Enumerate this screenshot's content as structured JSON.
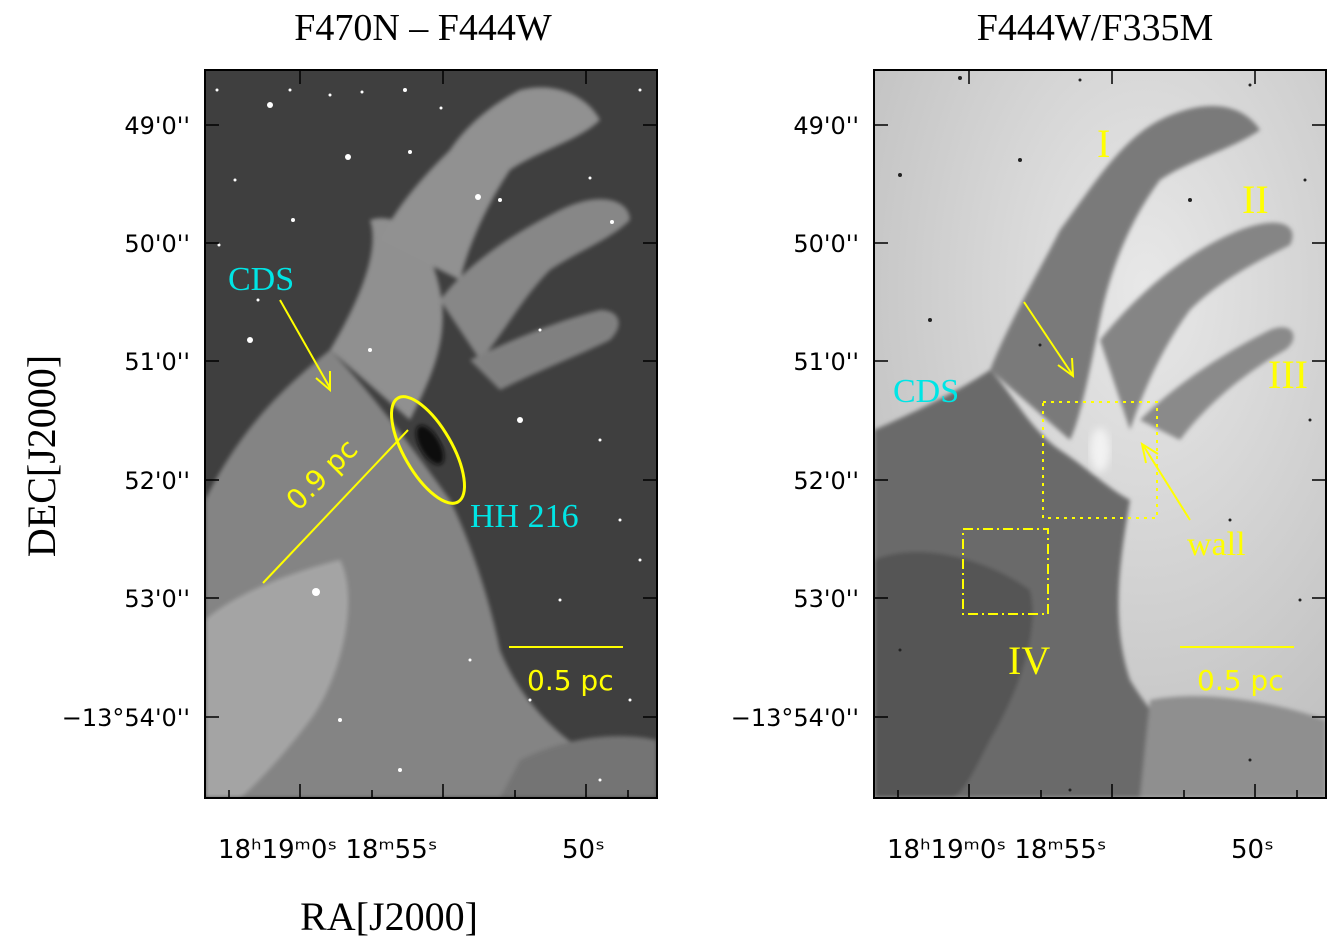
{
  "figure": {
    "ylabel": "DEC[J2000]",
    "xlabel": "RA[J2000]",
    "colors": {
      "annotation_yellow": "#ffff00",
      "annotation_cyan": "#00e5e5",
      "frame": "#000000"
    }
  },
  "panels": [
    {
      "id": "left",
      "title": "F470N – F444W",
      "y_ticks": [
        "49'0''",
        "50'0''",
        "51'0''",
        "52'0''",
        "53'0''",
        "−13°54'0''"
      ],
      "x_ticks": [
        "18ʰ19ᵐ0ˢ 18ᵐ55ˢ",
        "50ˢ"
      ],
      "labels": {
        "cds": "CDS",
        "hh216": "HH 216",
        "length": "0.9 pc",
        "scalebar": "0.5 pc"
      }
    },
    {
      "id": "right",
      "title": "F444W/F335M",
      "y_ticks": [
        "49'0''",
        "50'0''",
        "51'0''",
        "52'0''",
        "53'0''",
        "−13°54'0''"
      ],
      "x_ticks": [
        "18ʰ19ᵐ0ˢ 18ᵐ55ˢ",
        "50ˢ"
      ],
      "labels": {
        "cds": "CDS",
        "pillar_I": "I",
        "pillar_II": "II",
        "pillar_III": "III",
        "pillar_IV": "IV",
        "wall": "wall",
        "scalebar": "0.5 pc"
      }
    }
  ]
}
